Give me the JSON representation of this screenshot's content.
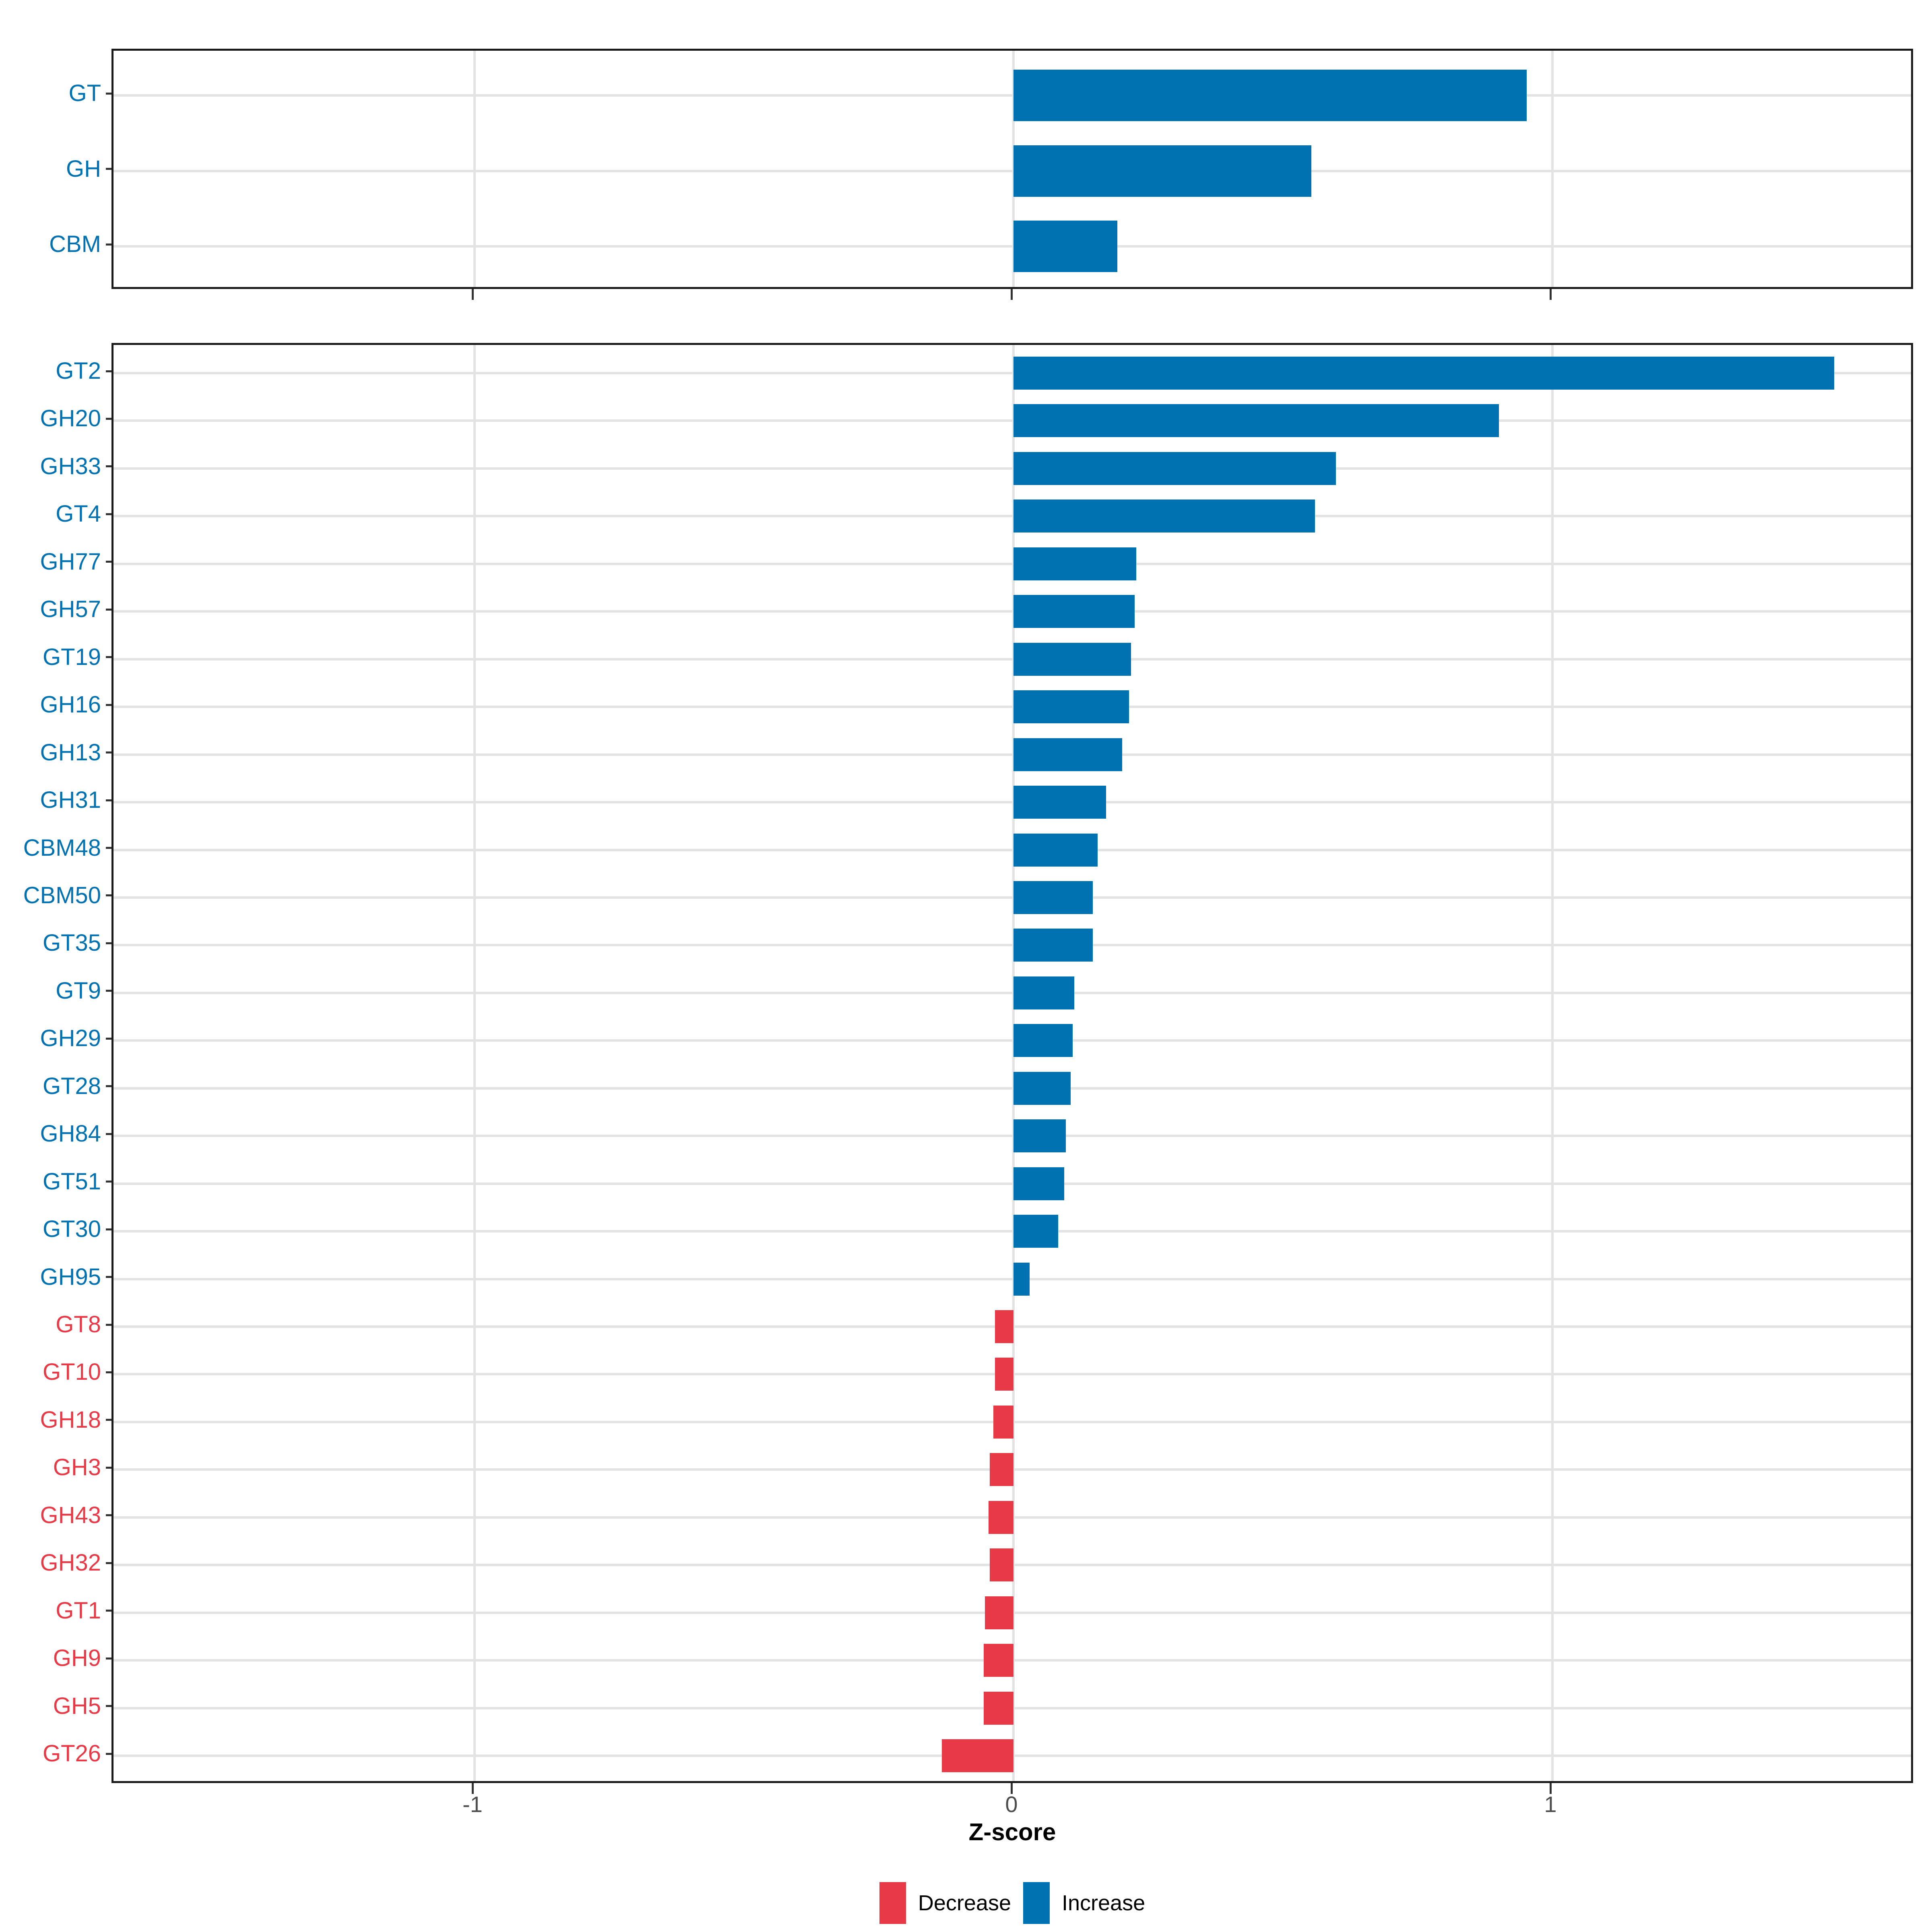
{
  "chart_data": {
    "type": "bar",
    "orientation": "horizontal",
    "title": "",
    "xlabel": "Z-score",
    "ylabel": "",
    "xlim": [
      -1.672,
      1.672
    ],
    "x_ticks": [
      -1,
      0,
      1
    ],
    "x_tick_labels": [
      "-1",
      "0",
      "1"
    ],
    "grid": "major gridlines on, light gray, white panel with black border",
    "legend_position": "bottom",
    "legend": [
      {
        "label": "Decrease",
        "color": "#e73946"
      },
      {
        "label": "Increase",
        "color": "#0072b2"
      }
    ],
    "panels": [
      {
        "name": "class-summary-panel",
        "categories": [
          "GT",
          "GH",
          "CBM"
        ],
        "values": [
          0.952,
          0.553,
          0.193
        ],
        "directions": [
          "Increase",
          "Increase",
          "Increase"
        ]
      },
      {
        "name": "family-detail-panel",
        "categories": [
          "GT2",
          "GH20",
          "GH33",
          "GT4",
          "GH77",
          "GH57",
          "GT19",
          "GH16",
          "GH13",
          "GH31",
          "CBM48",
          "CBM50",
          "GT35",
          "GT9",
          "GH29",
          "GT28",
          "GH84",
          "GT51",
          "GT30",
          "GH95",
          "GT8",
          "GT10",
          "GH18",
          "GH3",
          "GH43",
          "GH32",
          "GT1",
          "GH9",
          "GH5",
          "GT26"
        ],
        "values": [
          1.523,
          0.901,
          0.598,
          0.559,
          0.228,
          0.225,
          0.218,
          0.214,
          0.202,
          0.172,
          0.156,
          0.147,
          0.147,
          0.113,
          0.11,
          0.106,
          0.097,
          0.094,
          0.083,
          0.03,
          -0.034,
          -0.034,
          -0.037,
          -0.044,
          -0.046,
          -0.044,
          -0.053,
          -0.055,
          -0.055,
          -0.133
        ],
        "directions": [
          "Increase",
          "Increase",
          "Increase",
          "Increase",
          "Increase",
          "Increase",
          "Increase",
          "Increase",
          "Increase",
          "Increase",
          "Increase",
          "Increase",
          "Increase",
          "Increase",
          "Increase",
          "Increase",
          "Increase",
          "Increase",
          "Increase",
          "Increase",
          "Decrease",
          "Decrease",
          "Decrease",
          "Decrease",
          "Decrease",
          "Decrease",
          "Decrease",
          "Decrease",
          "Decrease",
          "Decrease"
        ]
      }
    ]
  },
  "colors": {
    "increase": "#0072b2",
    "decrease": "#e73946",
    "axis_text": "#4d4d4d",
    "panel_border": "#1a1a1a",
    "gridline": "#e3e3e3"
  }
}
